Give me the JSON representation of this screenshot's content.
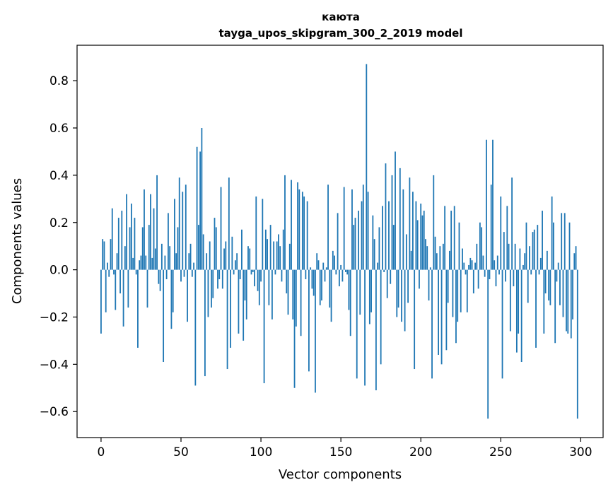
{
  "chart_data": {
    "type": "bar",
    "title": "каюта",
    "subtitle": "tayga_upos_skipgram_300_2_2019 model",
    "xlabel": "Vector components",
    "ylabel": "Components values",
    "xlim": [
      -15,
      314
    ],
    "ylim": [
      -0.71,
      0.95
    ],
    "xticks": [
      0,
      50,
      100,
      150,
      200,
      250,
      300
    ],
    "yticks": [
      -0.6,
      -0.4,
      -0.2,
      0.0,
      0.2,
      0.4,
      0.6,
      0.8
    ],
    "ytick_labels": [
      "−0.6",
      "−0.4",
      "−0.2",
      "0.0",
      "0.2",
      "0.4",
      "0.6",
      "0.8"
    ],
    "bar_color": "#1f77b4",
    "grid": false,
    "values": [
      -0.27,
      0.13,
      0.12,
      -0.18,
      0.03,
      -0.03,
      0.13,
      0.26,
      -0.02,
      -0.17,
      0.07,
      0.22,
      -0.1,
      0.25,
      -0.24,
      0.1,
      0.32,
      -0.16,
      0.18,
      0.28,
      0.05,
      0.22,
      -0.02,
      -0.33,
      0.04,
      0.06,
      0.18,
      0.34,
      0.06,
      -0.16,
      0.19,
      0.32,
      0.05,
      0.26,
      0.09,
      0.4,
      -0.06,
      -0.09,
      0.11,
      -0.39,
      0.06,
      -0.04,
      0.24,
      0.1,
      -0.25,
      -0.18,
      0.3,
      0.07,
      0.18,
      0.39,
      -0.05,
      0.33,
      -0.03,
      0.36,
      -0.22,
      0.07,
      0.11,
      -0.03,
      0.03,
      -0.49,
      0.52,
      0.19,
      0.5,
      0.6,
      0.15,
      -0.45,
      0.07,
      -0.2,
      0.12,
      -0.16,
      -0.12,
      0.22,
      0.18,
      -0.08,
      -0.04,
      0.35,
      -0.08,
      0.09,
      0.12,
      -0.42,
      0.39,
      -0.33,
      0.14,
      -0.02,
      0.04,
      0.07,
      -0.27,
      -0.04,
      0.17,
      -0.3,
      -0.13,
      -0.21,
      0.1,
      0.09,
      -0.02,
      -0.01,
      -0.07,
      0.31,
      -0.09,
      -0.15,
      -0.05,
      0.3,
      -0.48,
      0.17,
      0.13,
      -0.15,
      0.19,
      -0.21,
      0.12,
      -0.02,
      0.12,
      0.15,
      0.1,
      -0.05,
      0.17,
      0.4,
      -0.1,
      -0.19,
      0.11,
      0.38,
      -0.21,
      -0.5,
      -0.24,
      0.37,
      0.34,
      -0.28,
      0.33,
      0.31,
      -0.04,
      0.29,
      -0.43,
      0.01,
      -0.08,
      -0.11,
      -0.52,
      0.07,
      0.04,
      -0.15,
      -0.13,
      0.03,
      -0.05,
      0.01,
      0.36,
      -0.16,
      -0.22,
      0.08,
      0.06,
      -0.02,
      0.24,
      -0.07,
      0.02,
      -0.05,
      0.35,
      -0.01,
      -0.02,
      -0.17,
      -0.28,
      0.34,
      0.19,
      0.22,
      -0.46,
      0.25,
      -0.19,
      0.29,
      0.36,
      -0.49,
      0.87,
      0.33,
      -0.23,
      -0.18,
      0.23,
      0.13,
      -0.51,
      0.03,
      0.18,
      -0.4,
      0.27,
      -0.01,
      0.45,
      -0.12,
      0.29,
      -0.06,
      0.4,
      0.19,
      0.5,
      -0.2,
      -0.16,
      0.43,
      -0.22,
      0.34,
      -0.26,
      0.15,
      -0.14,
      0.39,
      0.08,
      0.33,
      -0.42,
      0.29,
      0.21,
      -0.08,
      0.28,
      0.23,
      0.25,
      0.13,
      0.1,
      -0.13,
      0.01,
      -0.46,
      0.4,
      0.14,
      0.07,
      -0.36,
      0.1,
      -0.4,
      0.11,
      0.27,
      -0.34,
      -0.14,
      0.08,
      0.25,
      -0.2,
      0.27,
      -0.31,
      -0.22,
      0.2,
      -0.18,
      0.09,
      0.03,
      -0.02,
      -0.18,
      0.02,
      0.05,
      0.04,
      -0.1,
      0.03,
      0.11,
      -0.08,
      0.2,
      0.18,
      0.06,
      -0.03,
      0.55,
      -0.63,
      -0.04,
      0.36,
      0.55,
      0.04,
      -0.07,
      0.06,
      -0.02,
      0.31,
      -0.46,
      0.16,
      -0.05,
      0.27,
      0.11,
      -0.26,
      0.39,
      -0.07,
      0.11,
      -0.35,
      -0.27,
      0.09,
      -0.39,
      0.02,
      0.07,
      0.2,
      -0.14,
      0.1,
      -0.02,
      0.16,
      0.17,
      -0.33,
      0.19,
      -0.02,
      0.05,
      0.25,
      -0.27,
      -0.1,
      0.08,
      -0.13,
      -0.15,
      0.31,
      0.2,
      -0.31,
      -0.05,
      0.03,
      -0.15,
      0.24,
      -0.2,
      0.24,
      -0.26,
      -0.27,
      0.2,
      -0.29,
      -0.21,
      0.07,
      0.1,
      -0.63
    ]
  }
}
